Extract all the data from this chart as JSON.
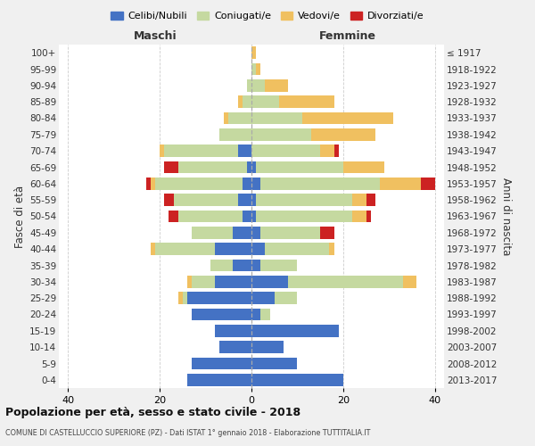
{
  "age_groups": [
    "0-4",
    "5-9",
    "10-14",
    "15-19",
    "20-24",
    "25-29",
    "30-34",
    "35-39",
    "40-44",
    "45-49",
    "50-54",
    "55-59",
    "60-64",
    "65-69",
    "70-74",
    "75-79",
    "80-84",
    "85-89",
    "90-94",
    "95-99",
    "100+"
  ],
  "birth_years": [
    "2013-2017",
    "2008-2012",
    "2003-2007",
    "1998-2002",
    "1993-1997",
    "1988-1992",
    "1983-1987",
    "1978-1982",
    "1973-1977",
    "1968-1972",
    "1963-1967",
    "1958-1962",
    "1953-1957",
    "1948-1952",
    "1943-1947",
    "1938-1942",
    "1933-1937",
    "1928-1932",
    "1923-1927",
    "1918-1922",
    "≤ 1917"
  ],
  "colors": {
    "celibi": "#4472C4",
    "coniugati": "#C5D9A0",
    "vedovi": "#F0C060",
    "divorziati": "#CC2222"
  },
  "maschi": {
    "celibi": [
      14,
      13,
      7,
      8,
      13,
      14,
      8,
      4,
      8,
      4,
      2,
      3,
      2,
      1,
      3,
      0,
      0,
      0,
      0,
      0,
      0
    ],
    "coniugati": [
      0,
      0,
      0,
      0,
      0,
      1,
      5,
      5,
      13,
      9,
      14,
      14,
      19,
      15,
      16,
      7,
      5,
      2,
      1,
      0,
      0
    ],
    "vedovi": [
      0,
      0,
      0,
      0,
      0,
      1,
      1,
      0,
      1,
      0,
      0,
      0,
      1,
      0,
      1,
      0,
      1,
      1,
      0,
      0,
      0
    ],
    "divorziati": [
      0,
      0,
      0,
      0,
      0,
      0,
      0,
      0,
      0,
      0,
      2,
      2,
      1,
      3,
      0,
      0,
      0,
      0,
      0,
      0,
      0
    ]
  },
  "femmine": {
    "celibi": [
      20,
      10,
      7,
      19,
      2,
      5,
      8,
      2,
      3,
      2,
      1,
      1,
      2,
      1,
      0,
      0,
      0,
      0,
      0,
      0,
      0
    ],
    "coniugati": [
      0,
      0,
      0,
      0,
      2,
      5,
      25,
      8,
      14,
      13,
      21,
      21,
      26,
      19,
      15,
      13,
      11,
      6,
      3,
      1,
      0
    ],
    "vedovi": [
      0,
      0,
      0,
      0,
      0,
      0,
      3,
      0,
      1,
      0,
      3,
      3,
      9,
      9,
      3,
      14,
      20,
      12,
      5,
      1,
      1
    ],
    "divorziati": [
      0,
      0,
      0,
      0,
      0,
      0,
      0,
      0,
      0,
      3,
      1,
      2,
      3,
      0,
      1,
      0,
      0,
      0,
      0,
      0,
      0
    ]
  },
  "xlim": 42,
  "title": "Popolazione per età, sesso e stato civile - 2018",
  "subtitle": "COMUNE DI CASTELLUCCIO SUPERIORE (PZ) - Dati ISTAT 1° gennaio 2018 - Elaborazione TUTTITALIA.IT",
  "ylabel_left": "Fasce di età",
  "ylabel_right": "Anni di nascita",
  "xlabel_maschi": "Maschi",
  "xlabel_femmine": "Femmine",
  "legend_labels": [
    "Celibi/Nubili",
    "Coniugati/e",
    "Vedovi/e",
    "Divorziati/e"
  ],
  "bg_color": "#f0f0f0",
  "plot_bg": "#ffffff"
}
